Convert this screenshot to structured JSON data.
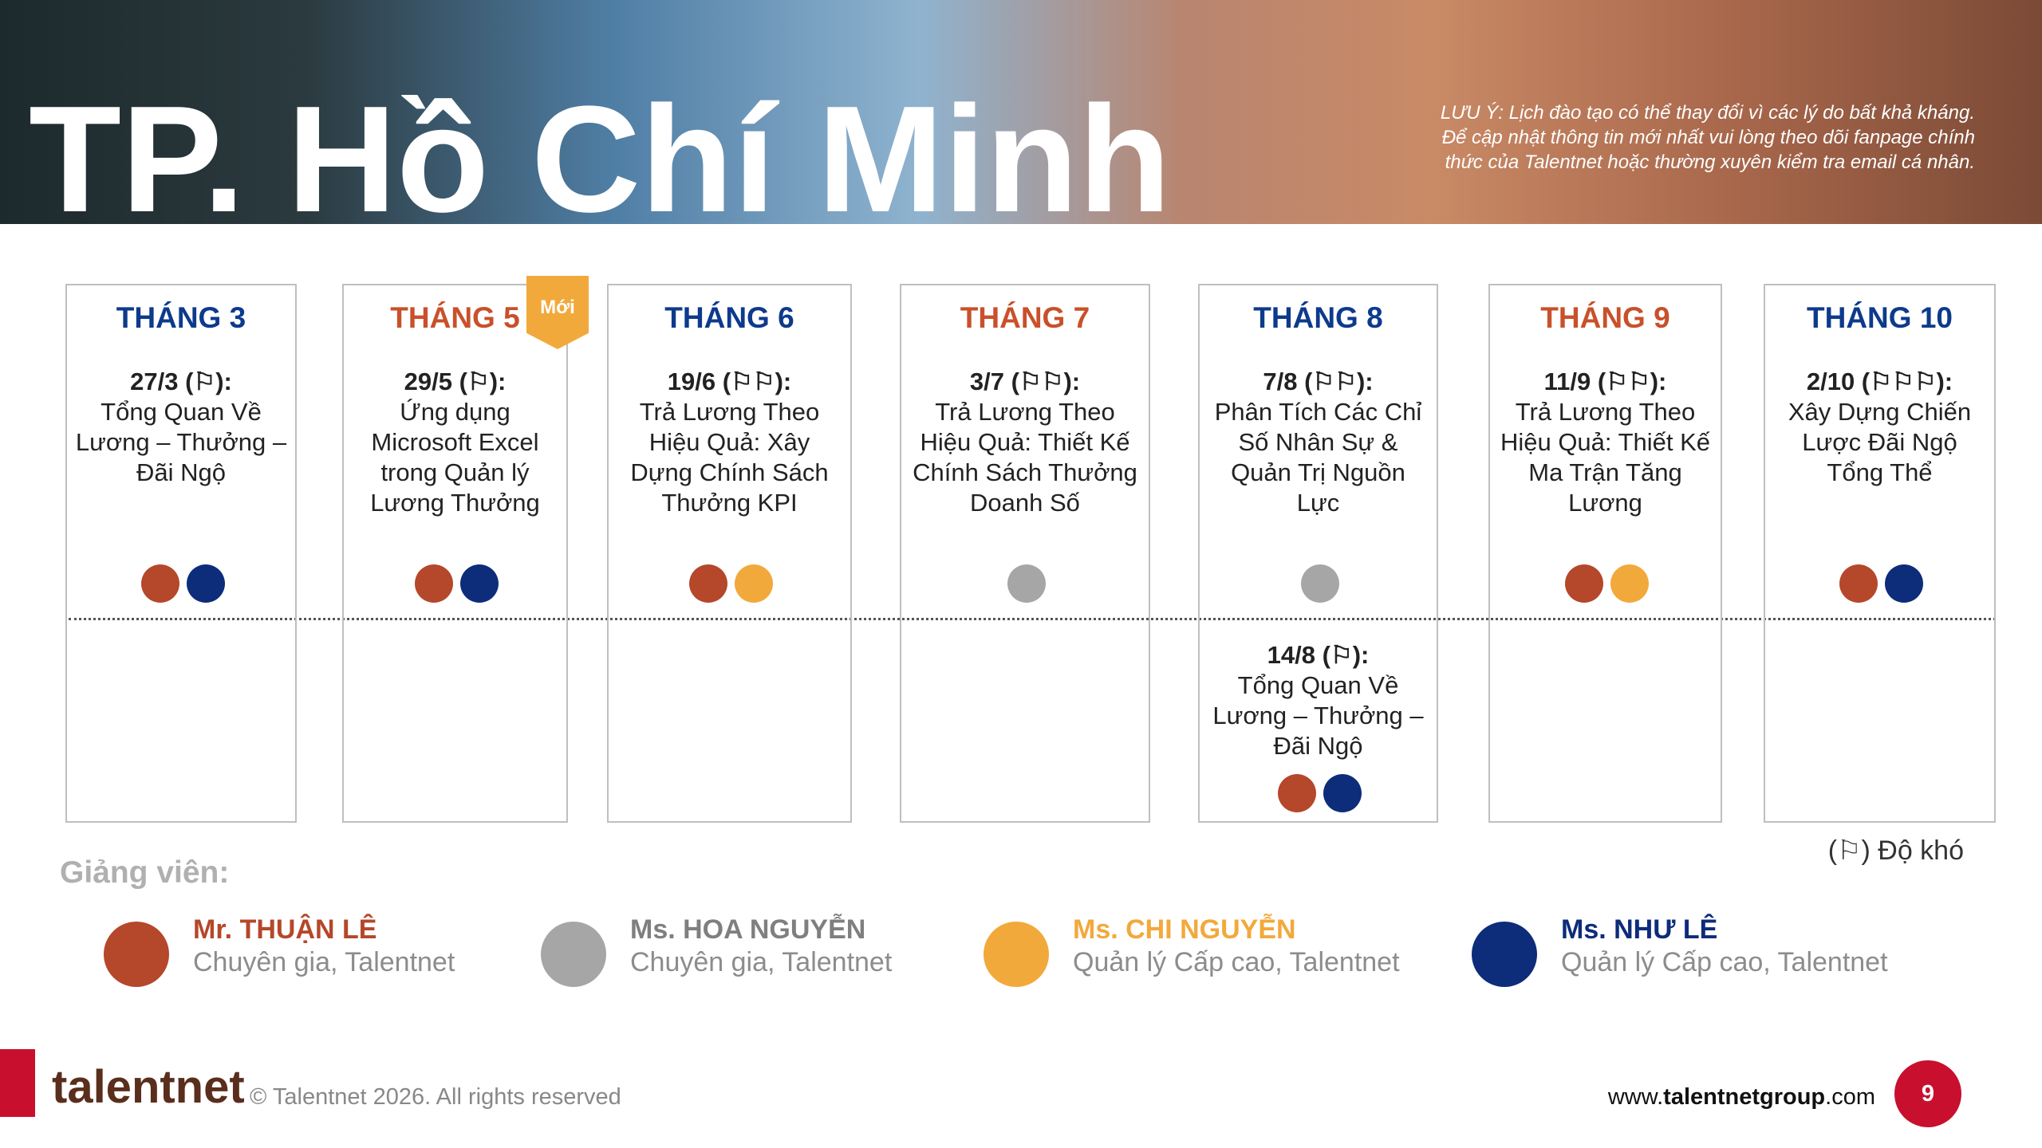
{
  "header": {
    "title": "TP. Hồ Chí Minh",
    "note": [
      "LƯU Ý: Lịch đào tạo có thể thay đổi vì các lý do bất khả kháng.",
      "Để cập nhật thông tin mới nhất vui lòng theo dõi fanpage chính",
      "thức của Talentnet hoặc thường xuyên kiểm tra email cá nhân."
    ]
  },
  "badge": "Mới",
  "months": [
    {
      "label": "THÁNG 3",
      "color": "#0d3a8c",
      "sessions": [
        {
          "date": "27/3 (⚐):",
          "title": "Tổng Quan Về Lương – Thưởng –  Đãi Ngộ",
          "dots": [
            "#b5472a",
            "#0d2c7a"
          ]
        }
      ]
    },
    {
      "label": "THÁNG 5",
      "color": "#c9502a",
      "sessions": [
        {
          "date": "29/5 (⚐):",
          "title": "Ứng dụng Microsoft Excel trong Quản lý Lương Thưởng",
          "dots": [
            "#b5472a",
            "#0d2c7a"
          ]
        }
      ]
    },
    {
      "label": "THÁNG 6",
      "color": "#0d3a8c",
      "sessions": [
        {
          "date": "19/6 (⚐⚐):",
          "title": "Trả Lương Theo Hiệu Quả: Xây Dựng Chính Sách Thưởng KPI",
          "dots": [
            "#b5472a",
            "#f2a93b"
          ]
        }
      ]
    },
    {
      "label": "THÁNG 7",
      "color": "#c9502a",
      "sessions": [
        {
          "date": "3/7 (⚐⚐):",
          "title": "Trả Lương Theo Hiệu Quả: Thiết Kế Chính Sách Thưởng Doanh Số",
          "dots": [
            "#a6a6a6"
          ]
        }
      ]
    },
    {
      "label": "THÁNG 8",
      "color": "#0d3a8c",
      "sessions": [
        {
          "date": "7/8 (⚐⚐):",
          "title": "Phân Tích Các Chỉ Số Nhân Sự & Quản Trị Nguồn Lực",
          "dots": [
            "#a6a6a6"
          ]
        },
        {
          "date": "14/8 (⚐):",
          "title": "Tổng Quan Về Lương – Thưởng – Đãi Ngộ",
          "dots": [
            "#b5472a",
            "#0d2c7a"
          ]
        }
      ]
    },
    {
      "label": "THÁNG 9",
      "color": "#c9502a",
      "sessions": [
        {
          "date": "11/9 (⚐⚐):",
          "title": "Trả Lương Theo Hiệu Quả: Thiết Kế Ma Trận Tăng Lương",
          "dots": [
            "#b5472a",
            "#f2a93b"
          ]
        }
      ]
    },
    {
      "label": "THÁNG 10",
      "color": "#0d3a8c",
      "sessions": [
        {
          "date": "2/10 (⚐⚐⚐):",
          "title": "Xây Dựng Chiến Lược Đãi Ngộ Tổng Thể",
          "dots": [
            "#b5472a",
            "#0d2c7a"
          ]
        }
      ]
    }
  ],
  "difficulty_legend": "(⚐) Độ khó",
  "instructors": {
    "label": "Giảng viên:",
    "people": [
      {
        "name": "Mr. THUẬN LÊ",
        "role": "Chuyên gia, Talentnet",
        "color": "#b5472a"
      },
      {
        "name": "Ms. HOA NGUYỄN",
        "role": "Chuyên gia, Talentnet",
        "color": "#a6a6a6"
      },
      {
        "name": "Ms. CHI NGUYỄN",
        "role": "Quản lý Cấp cao, Talentnet",
        "color": "#f2a93b"
      },
      {
        "name": "Ms. NHƯ LÊ",
        "role": "Quản lý Cấp cao, Talentnet",
        "color": "#0d2c7a"
      }
    ]
  },
  "footer": {
    "logo": "talentnet",
    "copyright": "© Talentnet 2026. All rights reserved",
    "website": {
      "prefix": "www.",
      "bold": "talentnetgroup",
      "suffix": ".com"
    },
    "page": "9"
  }
}
